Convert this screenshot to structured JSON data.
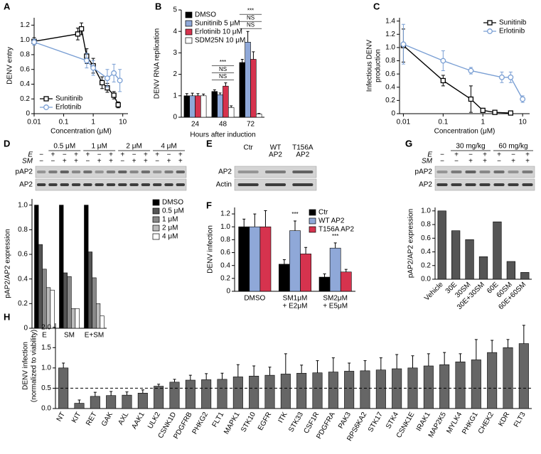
{
  "chart_data": [
    {
      "panel": "A",
      "type": "line",
      "xscale": "log",
      "x_label": "Concentration (μM)",
      "y_label": "DENV entry",
      "xlim": [
        0.01,
        15
      ],
      "xticks": [
        0.01,
        0.1,
        1,
        10
      ],
      "ylim": [
        0,
        1.3
      ],
      "yticks": [
        0,
        0.2,
        0.4,
        0.6,
        0.8,
        {
          "value": 1,
          "label": "1.0"
        },
        1.2
      ],
      "legend": "lower left",
      "series": [
        {
          "name": "Sunitinib",
          "color": "#000000",
          "marker": "square",
          "x": [
            0.01,
            0.3,
            0.4,
            0.6,
            1,
            2,
            3,
            5,
            7
          ],
          "values": [
            0.98,
            1.08,
            1.15,
            0.78,
            0.65,
            0.42,
            0.35,
            0.25,
            0.12
          ],
          "errors": [
            0.05,
            0.08,
            0.08,
            0.1,
            0.1,
            0.08,
            0.06,
            0.05,
            0.04
          ]
        },
        {
          "name": "Erlotinib",
          "color": "#7a9fd4",
          "marker": "circle",
          "x": [
            0.01,
            0.6,
            1,
            3,
            5,
            8
          ],
          "values": [
            0.97,
            0.72,
            0.62,
            0.48,
            0.55,
            0.45
          ],
          "errors": [
            0.04,
            0.1,
            0.1,
            0.12,
            0.12,
            0.15
          ]
        }
      ]
    },
    {
      "panel": "B",
      "type": "bar",
      "x_label": "Hours after induction",
      "y_label": "DENV RNA replication",
      "categories": [
        "24",
        "48",
        "72"
      ],
      "ylim": [
        0,
        5
      ],
      "yticks": [
        0,
        1,
        2,
        3,
        4,
        5
      ],
      "legend": "upper left",
      "annotations": [
        [
          "***",
          "NS",
          "NS"
        ],
        [
          "***",
          "NS",
          "NS"
        ]
      ],
      "series": [
        {
          "name": "DMSO",
          "color": "#000000",
          "values": [
            1,
            1.2,
            2.55
          ],
          "errors": [
            0.1,
            0.08,
            0.15
          ]
        },
        {
          "name": "Sunitinib 5 μM",
          "color": "#8fa8d8",
          "values": [
            1,
            1.05,
            3.5
          ],
          "errors": [
            0.12,
            0.08,
            0.5
          ]
        },
        {
          "name": "Erlotinib 10 μM",
          "color": "#d6334e",
          "values": [
            1,
            1.45,
            2.7
          ],
          "errors": [
            0.1,
            0.15,
            0.35
          ]
        },
        {
          "name": "SDM25N 10 μM",
          "color": "#ffffff",
          "values": [
            1,
            0.45,
            0.15
          ],
          "errors": [
            0.08,
            0.08,
            0.03
          ]
        }
      ]
    },
    {
      "panel": "C",
      "type": "line",
      "xscale": "log",
      "x_label": "Concentration (μM)",
      "y_label": [
        "Infectious DENV",
        "production"
      ],
      "xlim": [
        0.008,
        15
      ],
      "xticks": [
        0.01,
        0.1,
        1,
        10
      ],
      "ylim": [
        0,
        1.45
      ],
      "yticks": [
        0,
        0.2,
        0.4,
        0.6,
        0.8,
        {
          "value": 1,
          "label": "1.0"
        },
        1.2,
        1.4
      ],
      "legend": "upper right",
      "series": [
        {
          "name": "Sunitinib",
          "color": "#000000",
          "marker": "square",
          "x": [
            0.01,
            0.1,
            0.5,
            1,
            2,
            5
          ],
          "values": [
            1.03,
            0.5,
            0.22,
            0.05,
            0.02,
            0.01
          ],
          "errors": [
            0.25,
            0.08,
            0.2,
            0.03,
            0.02,
            0.01
          ]
        },
        {
          "name": "Erlotinib",
          "color": "#7a9fd4",
          "marker": "circle",
          "x": [
            0.01,
            0.1,
            0.5,
            3,
            5,
            10
          ],
          "values": [
            1.05,
            0.8,
            0.65,
            0.55,
            0.55,
            0.22
          ],
          "errors": [
            0.3,
            0.15,
            0.05,
            0.08,
            0.08,
            0.05
          ]
        }
      ]
    },
    {
      "panel": "D",
      "type": "bar",
      "y_label": "pAP2/AP2 expression",
      "categories": [
        "E",
        "SM",
        "E+SM"
      ],
      "ylim": [
        0,
        1.05
      ],
      "yticks": [
        0,
        0.2,
        0.4,
        0.6,
        0.8,
        {
          "value": 1,
          "label": "1.0"
        }
      ],
      "legend": "right",
      "series": [
        {
          "name": "DMSO",
          "color": "#000000",
          "values": [
            1,
            1,
            1
          ]
        },
        {
          "name": "0.5 μM",
          "color": "#555555",
          "values": [
            0.68,
            0.45,
            0.62
          ]
        },
        {
          "name": "1 μM",
          "color": "#888888",
          "values": [
            0.48,
            0.42,
            0.41
          ]
        },
        {
          "name": "2 μM",
          "color": "#bbbbbb",
          "values": [
            0.33,
            0.16,
            0.2
          ]
        },
        {
          "name": "4 μM",
          "color": "#ffffff",
          "values": [
            0.31,
            0.16,
            0.1
          ]
        }
      ]
    },
    {
      "panel": "F",
      "type": "bar",
      "y_label": "DENV infection",
      "categories": [
        "DMSO",
        [
          "SM1μM",
          "+ E2μM"
        ],
        [
          "SM2μM",
          "+ E5μM"
        ]
      ],
      "ylim": [
        0,
        1.3
      ],
      "yticks": [
        0,
        0.2,
        0.4,
        0.6,
        0.8,
        {
          "value": 1,
          "label": "1.0"
        },
        1.2
      ],
      "legend": "upper right",
      "annotations": [
        [
          "***"
        ],
        [
          "***"
        ]
      ],
      "series": [
        {
          "name": "Ctr",
          "color": "#000000",
          "values": [
            1,
            0.42,
            0.22
          ],
          "errors": [
            0.12,
            0.07,
            0.05
          ]
        },
        {
          "name": "WT AP2",
          "color": "#8fa8d8",
          "values": [
            1,
            0.94,
            0.67
          ],
          "errors": [
            0.2,
            0.15,
            0.08
          ]
        },
        {
          "name": "T156A AP2",
          "color": "#d6334e",
          "values": [
            1,
            0.58,
            0.3
          ],
          "errors": [
            0.25,
            0.1,
            0.04
          ]
        }
      ]
    },
    {
      "panel": "G",
      "type": "bar",
      "y_label": "pAP2/AP2 expression",
      "categories": [
        "Vehicle",
        "30E",
        "30SM",
        "30E+30SM",
        "60E",
        "60SM",
        "60E+60SM"
      ],
      "values": [
        1,
        0.71,
        0.58,
        0.33,
        0.84,
        0.26,
        0.1
      ],
      "color": "#555555",
      "ylim": [
        0,
        1.05
      ],
      "yticks": [
        {
          "value": 0,
          "label": "0.0"
        },
        0.2,
        0.4,
        0.6,
        0.8,
        {
          "value": 1,
          "label": "1.0"
        }
      ]
    },
    {
      "panel": "H",
      "type": "bar",
      "y_label": [
        "DENV infection",
        "(normalized to viability)"
      ],
      "categories": [
        "NT",
        "KIT",
        "RET",
        "GAK",
        "AXL",
        "AAK1",
        "ULK2",
        "CSNK1D",
        "PDGFRB",
        "PHKG2",
        "FLT1",
        "MAPK1",
        "STK10",
        "EGFR",
        "ITK",
        "STK33",
        "CSF1R",
        "PDGFRA",
        "PAK3",
        "RPS6KA2",
        "STK17",
        "STK4",
        "CSNK1E",
        "IRAK1",
        "MAP2K5",
        "MYLK4",
        "PHKG1",
        "CHEK2",
        "KDR",
        "FLT3"
      ],
      "values": [
        1.0,
        0.13,
        0.3,
        0.32,
        0.33,
        0.38,
        0.55,
        0.65,
        0.7,
        0.71,
        0.72,
        0.78,
        0.8,
        0.82,
        0.85,
        0.87,
        0.88,
        0.9,
        0.92,
        0.93,
        0.95,
        0.98,
        1.0,
        1.05,
        1.08,
        1.15,
        1.2,
        1.38,
        1.5,
        1.6
      ],
      "errors": [
        0.12,
        0.08,
        0.1,
        0.1,
        0.08,
        0.08,
        0.05,
        0.07,
        0.12,
        0.15,
        0.15,
        0.3,
        0.25,
        0.2,
        0.5,
        0.2,
        0.3,
        0.35,
        0.2,
        0.25,
        0.3,
        0.35,
        0.3,
        0.3,
        0.3,
        0.2,
        0.5,
        0.3,
        0.2,
        0.45
      ],
      "color": "#666666",
      "reference_line": 0.5,
      "ylim": [
        0,
        2.1
      ],
      "yticks": [
        {
          "value": 0,
          "label": "0.0"
        },
        0.5,
        {
          "value": 1,
          "label": "1.0"
        },
        1.5,
        {
          "value": 2,
          "label": "2.0"
        }
      ]
    }
  ],
  "blots": {
    "D": {
      "groups": [
        "0.5 μM",
        "1 μM",
        "2 μM",
        "4 μM"
      ],
      "rows": [
        {
          "name": "E",
          "signs": [
            "−",
            "+",
            "−",
            "+",
            "+",
            "−",
            "+",
            "+",
            "−",
            "+",
            "+",
            "−",
            "+"
          ]
        },
        {
          "name": "SM",
          "signs": [
            "−",
            "−",
            "+",
            "+",
            "−",
            "+",
            "+",
            "−",
            "+",
            "+",
            "−",
            "+",
            "+"
          ]
        }
      ],
      "bands": [
        "pAP2",
        "AP2"
      ]
    },
    "E": {
      "panel": "E",
      "columns": [
        [
          "Ctr"
        ],
        [
          "WT",
          "AP2"
        ],
        [
          "T156A",
          "AP2"
        ]
      ],
      "bands": [
        "AP2",
        "Actin"
      ]
    },
    "G": {
      "panel": "G",
      "groups": [
        "30 mg/kg",
        "60 mg/kg"
      ],
      "rows": [
        {
          "name": "E",
          "signs": [
            "−",
            "+",
            "−",
            "+",
            "+",
            "−",
            "+"
          ]
        },
        {
          "name": "SM",
          "signs": [
            "−",
            "−",
            "+",
            "+",
            "−",
            "+",
            "+"
          ]
        }
      ],
      "bands": [
        "pAP2",
        "AP2"
      ]
    }
  }
}
